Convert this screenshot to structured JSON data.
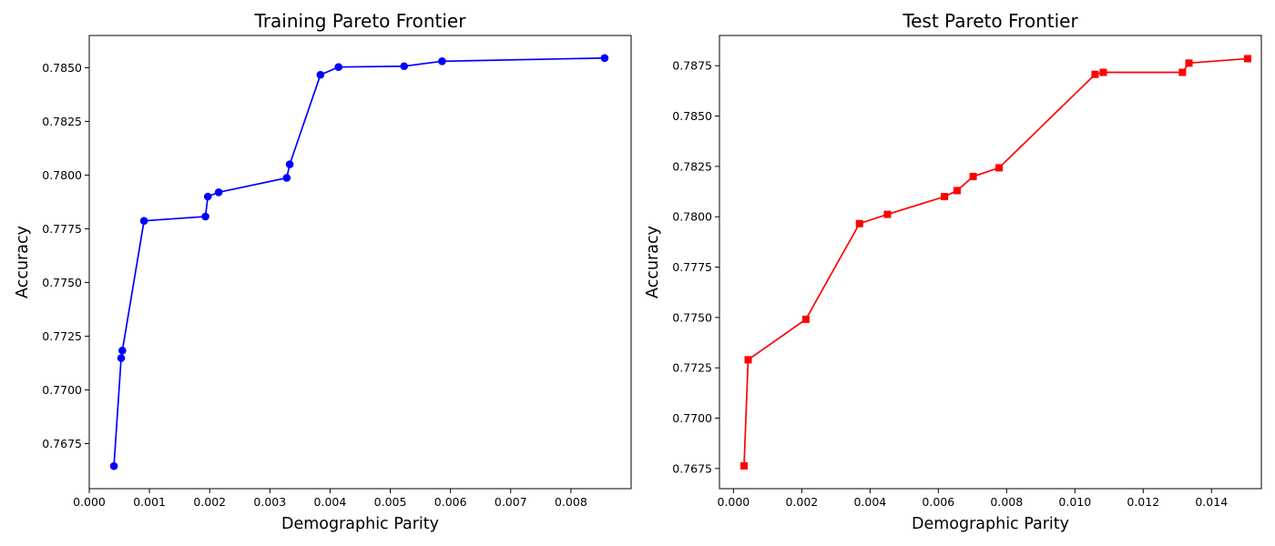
{
  "chart_data": [
    {
      "type": "line",
      "title": "Training Pareto Frontier",
      "xlabel": "Demographic Parity",
      "ylabel": "Accuracy",
      "xlim": [
        0.0,
        0.009
      ],
      "ylim": [
        0.7654,
        0.7865
      ],
      "xticks": [
        "0.000",
        "0.001",
        "0.002",
        "0.003",
        "0.004",
        "0.005",
        "0.006",
        "0.007",
        "0.008"
      ],
      "yticks": [
        "0.7675",
        "0.7700",
        "0.7725",
        "0.7750",
        "0.7775",
        "0.7800",
        "0.7825",
        "0.7850"
      ],
      "grid": false,
      "marker": "circle",
      "color": "#0000ff",
      "series": [
        {
          "x": [
            0.00041,
            0.00053,
            0.00055,
            0.00091,
            0.00193,
            0.00197,
            0.00215,
            0.00328,
            0.00333,
            0.00384,
            0.00414,
            0.00523,
            0.00586,
            0.00856
          ],
          "y": [
            0.76645,
            0.77148,
            0.77183,
            0.77787,
            0.77807,
            0.779,
            0.7792,
            0.77987,
            0.7805,
            0.78467,
            0.78503,
            0.78507,
            0.7853,
            0.78545
          ]
        }
      ]
    },
    {
      "type": "line",
      "title": "Test Pareto Frontier",
      "xlabel": "Demographic Parity",
      "ylabel": "Accuracy",
      "xlim": [
        -0.00041,
        0.01546
      ],
      "ylim": [
        0.7665,
        0.789
      ],
      "xticks": [
        "0.000",
        "0.002",
        "0.004",
        "0.006",
        "0.008",
        "0.010",
        "0.012",
        "0.014"
      ],
      "yticks": [
        "0.7675",
        "0.7700",
        "0.7725",
        "0.7750",
        "0.7775",
        "0.7800",
        "0.7825",
        "0.7850",
        "0.7875"
      ],
      "grid": false,
      "marker": "square",
      "color": "#ff0000",
      "series": [
        {
          "x": [
            0.00031,
            0.00043,
            0.00212,
            0.00369,
            0.00451,
            0.00618,
            0.00655,
            0.00702,
            0.00778,
            0.01059,
            0.01083,
            0.01315,
            0.01334,
            0.01506
          ],
          "y": [
            0.76763,
            0.7729,
            0.77491,
            0.77966,
            0.78012,
            0.781,
            0.7813,
            0.782,
            0.78243,
            0.78707,
            0.78717,
            0.78717,
            0.78763,
            0.78785
          ]
        }
      ]
    }
  ]
}
